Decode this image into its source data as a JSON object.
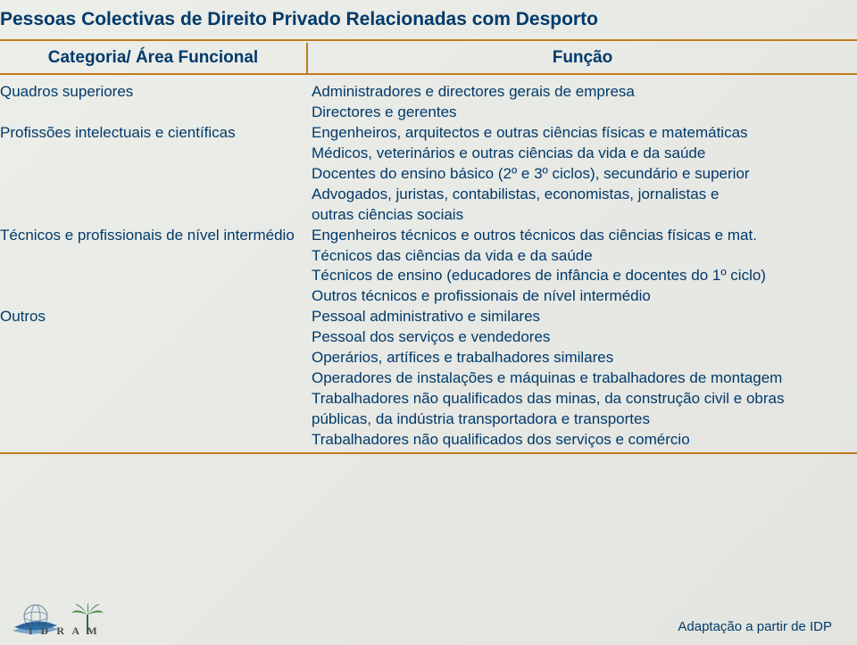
{
  "title": "Pessoas Colectivas de Direito Privado Relacionadas com Desporto",
  "headers": {
    "left": "Categoria/ Área Funcional",
    "right": "Função"
  },
  "rows": [
    {
      "cat": "Quadros superiores",
      "fn": "Administradores e directores gerais de empresa"
    },
    {
      "cat": "",
      "fn": "Directores e gerentes"
    },
    {
      "cat": "Profissões intelectuais e científicas",
      "fn": "Engenheiros, arquitectos e outras ciências físicas e matemáticas"
    },
    {
      "cat": "",
      "fn": "Médicos, veterinários e outras ciências da vida e da saúde"
    },
    {
      "cat": "",
      "fn": "Docentes do ensino básico (2º e 3º ciclos), secundário e superior"
    },
    {
      "cat": "",
      "fn": "Advogados, juristas, contabilistas, economistas, jornalistas e"
    },
    {
      "cat": "",
      "fn": "outras ciências sociais"
    },
    {
      "cat": "Técnicos e profissionais de nível intermédio",
      "fn": "Engenheiros técnicos e outros técnicos das ciências físicas e mat."
    },
    {
      "cat": "",
      "fn": "Técnicos das ciências da vida e da saúde"
    },
    {
      "cat": "",
      "fn": "Técnicos de ensino (educadores de infância e docentes do 1º ciclo)"
    },
    {
      "cat": "",
      "fn": "Outros técnicos e profissionais de nível intermédio"
    },
    {
      "cat": "Outros",
      "fn": "Pessoal administrativo e similares"
    },
    {
      "cat": "",
      "fn": "Pessoal dos serviços e vendedores"
    },
    {
      "cat": "",
      "fn": "Operários, artífices e trabalhadores similares"
    },
    {
      "cat": "",
      "fn": "Operadores de instalações e máquinas e trabalhadores de montagem"
    },
    {
      "cat": "",
      "fn": "Trabalhadores não qualificados das minas, da construção civil e obras"
    },
    {
      "cat": "",
      "fn": "públicas, da indústria transportadora e transportes"
    },
    {
      "cat": "",
      "fn": "Trabalhadores não qualificados dos serviços e comércio"
    }
  ],
  "footer": "Adaptação a partir de IDP",
  "logo_text": "I D R A M",
  "colors": {
    "text": "#013a6b",
    "rule": "#c07b1f",
    "bg": "#e8e9e6"
  }
}
